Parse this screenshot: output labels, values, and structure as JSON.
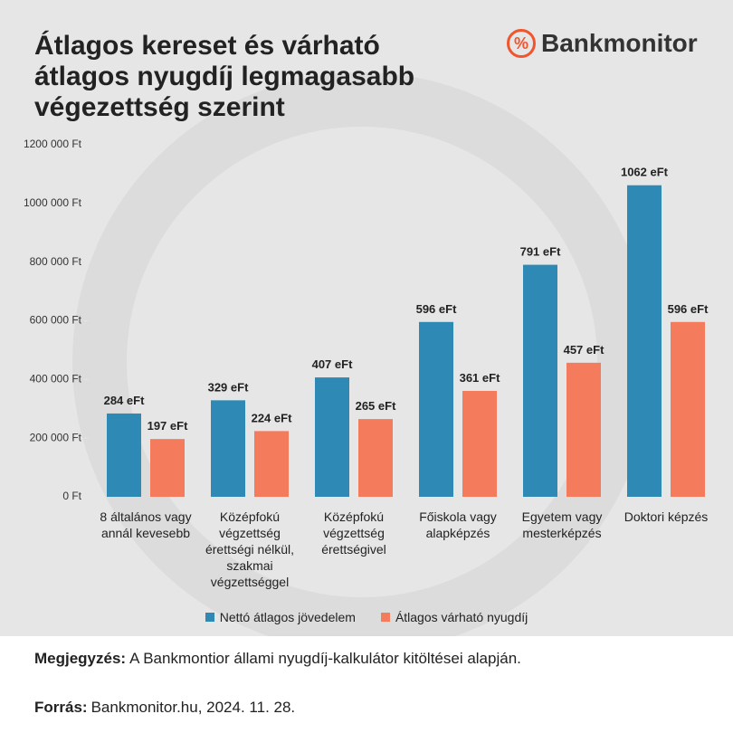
{
  "chart_data": {
    "type": "bar",
    "title": [
      "Átlagos kereset és várható",
      "átlagos nyugdíj legmagasabb",
      "végezettség szerint"
    ],
    "brand": "Bankmonitor",
    "categories": [
      "8 általános vagy annál kevesebb",
      "Középfokú végzettség érettségi nélkül, szakmai végzettséggel",
      "Középfokú végzettség érettségivel",
      "Főiskola vagy alapképzés",
      "Egyetem vagy mesterképzés",
      "Doktori képzés"
    ],
    "series": [
      {
        "name": "Nettó átlagos jövedelem",
        "color": "#2e8ab4",
        "values": [
          284000,
          329000,
          407000,
          596000,
          791000,
          1062000
        ],
        "value_labels": [
          "284 eFt",
          "329 eFt",
          "407 eFt",
          "596 eFt",
          "791 eFt",
          "1062 eFt"
        ]
      },
      {
        "name": "Átlagos várható nyugdíj",
        "color": "#f47b5b",
        "values": [
          197000,
          224000,
          265000,
          361000,
          457000,
          596000
        ],
        "value_labels": [
          "197 eFt",
          "224 eFt",
          "265 eFt",
          "361 eFt",
          "457 eFt",
          "596 eFt"
        ]
      }
    ],
    "ylim": [
      0,
      1200000
    ],
    "yticks": [
      {
        "value": 0,
        "label": "0 Ft"
      },
      {
        "value": 200000,
        "label": "200 000 Ft"
      },
      {
        "value": 400000,
        "label": "400 000 Ft"
      },
      {
        "value": 600000,
        "label": "600 000 Ft"
      },
      {
        "value": 800000,
        "label": "800 000 Ft"
      },
      {
        "value": 1000000,
        "label": "1000 000 Ft"
      },
      {
        "value": 1200000,
        "label": "1200 000 Ft"
      }
    ],
    "legend": "bottom",
    "note": {
      "label": "Megjegyzés:",
      "text": "A Bankmontior állami nyugdíj-kalkulátor kitöltései alapján."
    },
    "source": {
      "label": "Forrás:",
      "text": "Bankmonitor.hu, 2024. 11. 28."
    }
  }
}
